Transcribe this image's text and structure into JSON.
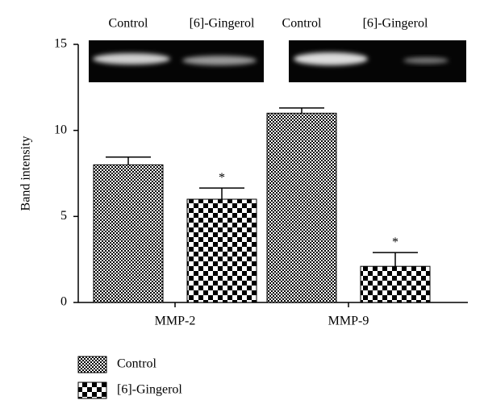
{
  "chart_data": {
    "type": "bar",
    "y_label": "Band intensity",
    "categories": [
      "MMP-2",
      "MMP-9"
    ],
    "lane_labels": [
      [
        "Control",
        "[6]-Gingerol"
      ],
      [
        "Control",
        "[6]-Gingerol"
      ]
    ],
    "series": [
      {
        "name": "Control",
        "color": "#000000",
        "values": [
          8,
          11
        ],
        "errors": [
          0.45,
          0.3
        ]
      },
      {
        "name": "[6]-Gingerol",
        "color": "#000000",
        "values": [
          6,
          2.1
        ],
        "errors": [
          0.65,
          0.8
        ],
        "annotations": [
          "*",
          "*"
        ]
      }
    ],
    "ylim": [
      0,
      15
    ],
    "yticks": [
      0,
      5,
      10,
      15
    ]
  }
}
